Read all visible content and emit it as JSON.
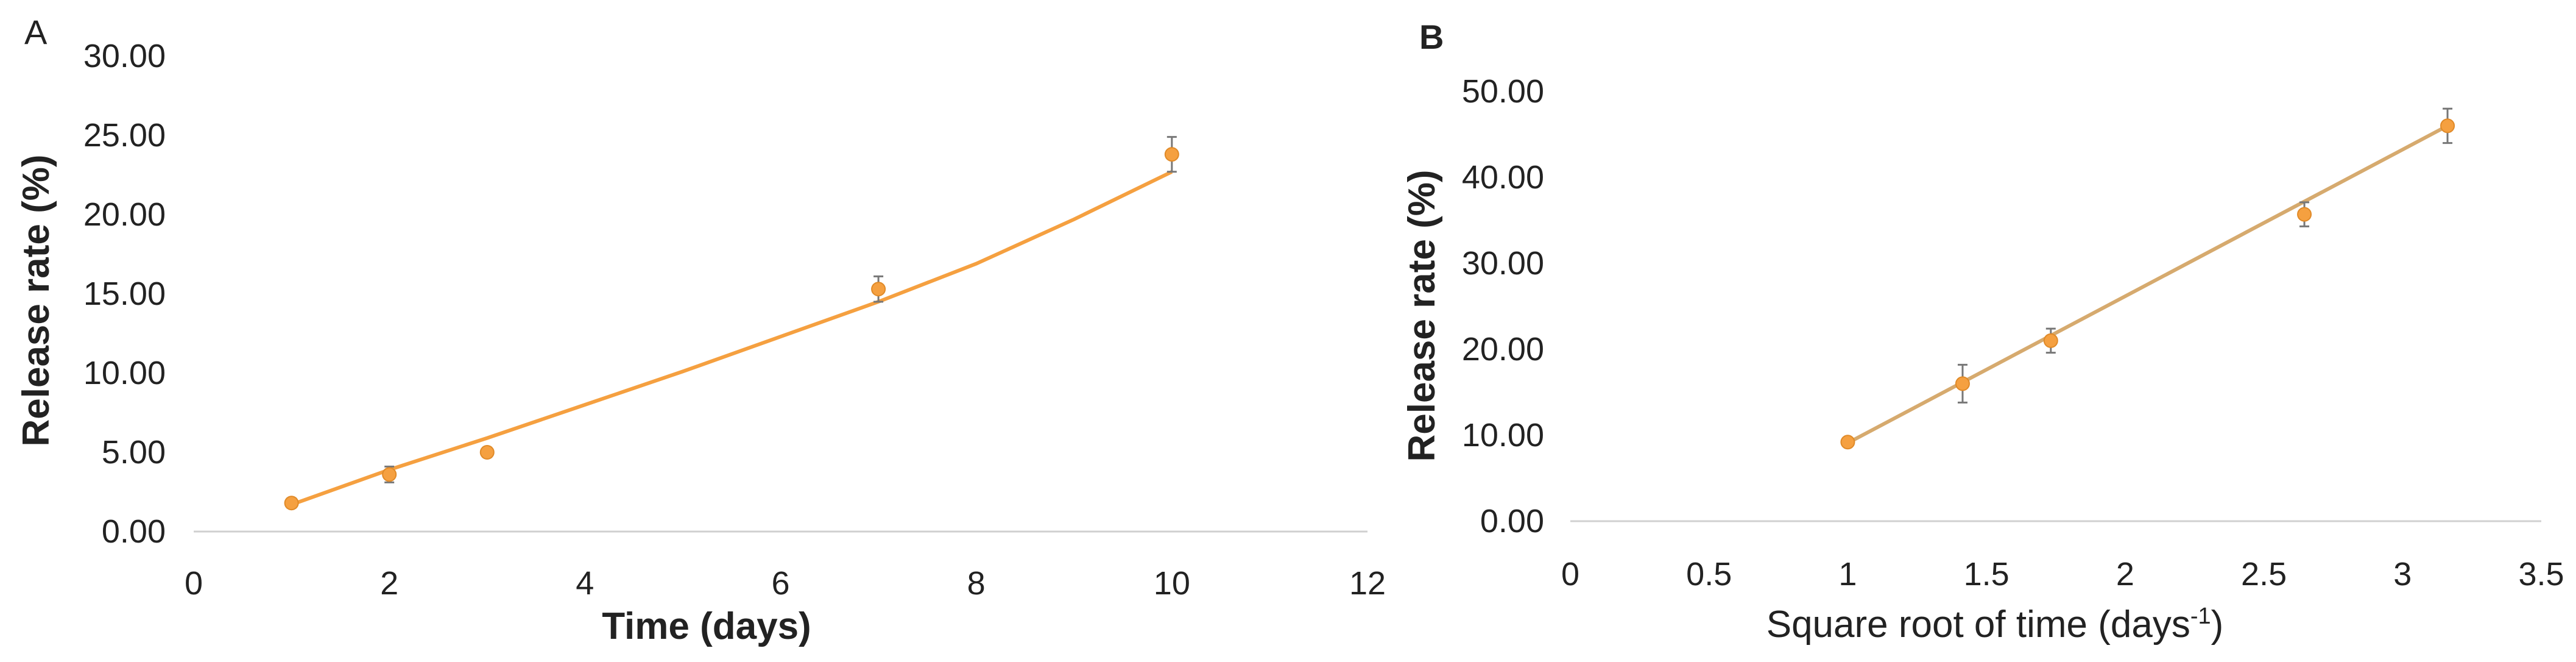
{
  "chart_data": [
    {
      "type": "scatter",
      "panel_label": "A",
      "xlabel": "Time (days)",
      "ylabel": "Release rate (%)",
      "xlim": [
        0,
        12
      ],
      "ylim": [
        0,
        30
      ],
      "x_ticks": [
        0,
        2,
        4,
        6,
        8,
        10,
        12
      ],
      "y_ticks": [
        "0.00",
        "5.00",
        "10.00",
        "15.00",
        "20.00",
        "25.00",
        "30.00"
      ],
      "y_tick_values": [
        0,
        5,
        10,
        15,
        20,
        25,
        30
      ],
      "grid": false,
      "legend": "none",
      "series": [
        {
          "x": [
            1,
            2,
            3,
            7,
            10
          ],
          "y": [
            1.8,
            3.6,
            5.0,
            15.3,
            23.8
          ],
          "error": [
            0.3,
            0.5,
            0.3,
            0.8,
            1.1
          ]
        }
      ],
      "trendline": {
        "x": [
          1,
          2,
          3,
          4,
          5,
          6,
          7,
          8,
          9,
          10
        ],
        "y": [
          1.7,
          3.9,
          5.9,
          8.0,
          10.1,
          12.3,
          14.5,
          16.9,
          19.7,
          22.7
        ]
      },
      "colors": {
        "marker": "#f5a040",
        "line": "#f5a040",
        "error": "#777777"
      }
    },
    {
      "type": "scatter",
      "panel_label": "B",
      "xlabel": "Square root of time (days",
      "xlabel_sup": "-1",
      "xlabel_end": ")",
      "ylabel": "Release rate (%)",
      "xlim": [
        0,
        3.5
      ],
      "ylim": [
        0,
        50
      ],
      "x_ticks": [
        "0",
        "0.5",
        "1",
        "1.5",
        "2",
        "2.5",
        "3",
        "3.5"
      ],
      "x_tick_values": [
        0,
        0.5,
        1,
        1.5,
        2,
        2.5,
        3,
        3.5
      ],
      "y_ticks": [
        "0.00",
        "10.00",
        "20.00",
        "30.00",
        "40.00",
        "50.00"
      ],
      "y_tick_values": [
        0,
        10,
        20,
        30,
        40,
        50
      ],
      "grid": false,
      "legend": "none",
      "series": [
        {
          "x": [
            1.0,
            1.414,
            1.732,
            2.646,
            3.162
          ],
          "y": [
            9.2,
            16.0,
            21.0,
            35.7,
            46.0
          ],
          "error": [
            0.4,
            2.2,
            1.4,
            1.4,
            2.0
          ]
        }
      ],
      "trendline": {
        "x": [
          1.0,
          3.162
        ],
        "y": [
          9.1,
          46.0
        ]
      },
      "colors": {
        "marker": "#f5a040",
        "line": "#d6aa6e",
        "error": "#777777"
      }
    }
  ]
}
